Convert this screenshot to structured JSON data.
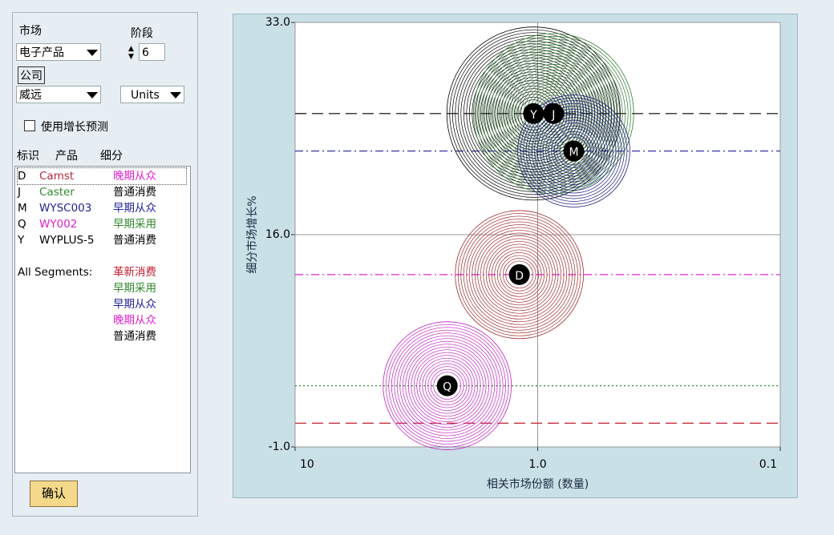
{
  "controls": {
    "market_label": "市场",
    "market_value": "电子产品",
    "stage_label": "阶段",
    "stage_value": 6,
    "company_label": "公司",
    "company_value": "威远",
    "unit_value": "Units",
    "forecast_label": "使用增长预测",
    "confirm": "确认"
  },
  "list": {
    "headers": [
      "标识",
      "产品",
      "细分"
    ],
    "rows": [
      {
        "id": "D",
        "product": "Camst",
        "segment": "晚期从众",
        "product_color": "#b8283c",
        "segment_color": "#e020d0"
      },
      {
        "id": "J",
        "product": "Caster",
        "segment": "普通消费",
        "product_color": "#2f8a2f",
        "segment_color": "#000000"
      },
      {
        "id": "M",
        "product": "WYSC003",
        "segment": "早期从众",
        "product_color": "#22229a",
        "segment_color": "#22229a"
      },
      {
        "id": "Q",
        "product": "WY002",
        "segment": "早期采用",
        "product_color": "#e020d0",
        "segment_color": "#2f8a2f"
      },
      {
        "id": "Y",
        "product": "WYPLUS-5",
        "segment": "普通消费",
        "product_color": "#000000",
        "segment_color": "#000000"
      }
    ],
    "all_label": "All Segments:",
    "segments": [
      {
        "name": "革新消费",
        "color": "#c02030"
      },
      {
        "name": "早期采用",
        "color": "#2f8a2f"
      },
      {
        "name": "早期从众",
        "color": "#22229a"
      },
      {
        "name": "晚期从众",
        "color": "#e020d0"
      },
      {
        "name": "普通消费",
        "color": "#000000"
      }
    ]
  },
  "chart_data": {
    "type": "bubble",
    "x_label": "相关市场份额 (数量)",
    "y_label": "细分市场增长%",
    "xscale": "log",
    "xlim": [
      10,
      0.1
    ],
    "xticks": [
      10,
      {
        "value": 1,
        "label": "1.0"
      },
      0.1
    ],
    "ylim": [
      -1,
      33
    ],
    "yticks": [
      {
        "value": -1,
        "label": "-1.0"
      },
      {
        "value": 16,
        "label": "16.0"
      },
      {
        "value": 33,
        "label": "33.0"
      }
    ],
    "grid": true,
    "labels": [
      "Y",
      "J",
      "M",
      "D",
      "Q"
    ],
    "x": [
      1.04,
      0.86,
      0.71,
      1.19,
      2.36
    ],
    "values": [
      25.7,
      25.7,
      22.7,
      12.8,
      3.9
    ],
    "sizes": [
      11.7,
      10,
      4.9,
      6.4,
      6.4
    ],
    "colors": [
      "#000000",
      "#2f7a2f",
      "#1a1a80",
      "#a02828",
      "#c020c0"
    ],
    "reference_lines": [
      {
        "value": 25.7,
        "color": "#000000",
        "dash": "14 7"
      },
      {
        "value": 22.7,
        "color": "#22229a",
        "dash": "10 4 2 4"
      },
      {
        "value": 12.8,
        "color": "#e020d0",
        "dash": "10 4 2 4"
      },
      {
        "value": 3.9,
        "color": "#2f8a2f",
        "dash": "2 3"
      },
      {
        "value": 0.9,
        "color": "#c02030",
        "dash": "14 7"
      }
    ]
  }
}
